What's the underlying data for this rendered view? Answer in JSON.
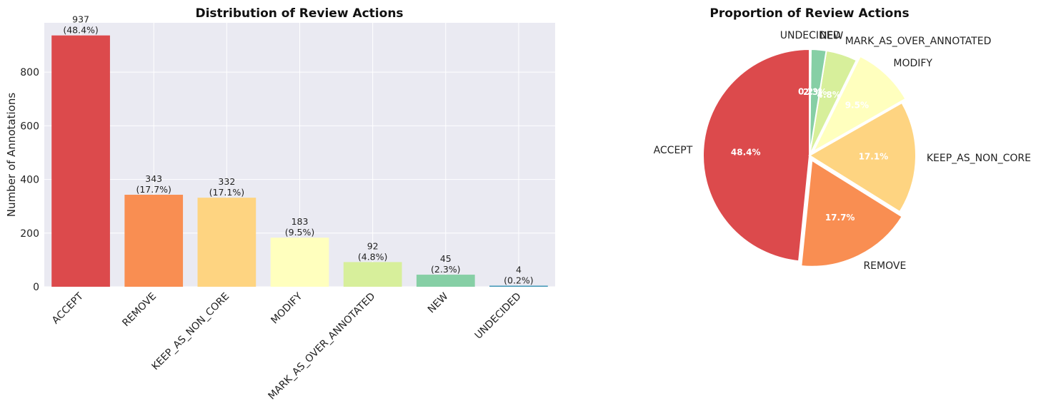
{
  "chart_data": [
    {
      "type": "bar",
      "title": "Distribution of Review Actions",
      "xlabel": "",
      "ylabel": "Number of Annotations",
      "categories": [
        "ACCEPT",
        "REMOVE",
        "KEEP_AS_NON_CORE",
        "MODIFY",
        "MARK_AS_OVER_ANNOTATED",
        "NEW",
        "UNDECIDED"
      ],
      "values": [
        937,
        343,
        332,
        183,
        92,
        45,
        4
      ],
      "data_labels": [
        "937\n(48.4%)",
        "343\n(17.7%)",
        "332\n(17.1%)",
        "183\n(9.5%)",
        "92\n(4.8%)",
        "45\n(2.3%)",
        "4\n(0.2%)"
      ],
      "colors": [
        "#dc4a4c",
        "#f98e52",
        "#fed481",
        "#ffffbe",
        "#d7ef9b",
        "#86cfa5",
        "#3e96b6"
      ],
      "yticks": [
        0,
        200,
        400,
        600,
        800
      ],
      "ylim": [
        0,
        984
      ],
      "grid": true
    },
    {
      "type": "pie",
      "title": "Proportion of Review Actions",
      "labels": [
        "ACCEPT",
        "REMOVE",
        "KEEP_AS_NON_CORE",
        "MODIFY",
        "MARK_AS_OVER_ANNOTATED",
        "NEW",
        "UNDECIDED"
      ],
      "values": [
        937,
        343,
        332,
        183,
        92,
        45,
        4
      ],
      "percent_labels": [
        "48.4%",
        "17.7%",
        "17.1%",
        "9.5%",
        "4.8%",
        "2.3%",
        "0.2%"
      ],
      "colors": [
        "#dc4a4c",
        "#f98e52",
        "#fed481",
        "#ffffbe",
        "#d7ef9b",
        "#86cfa5",
        "#3e96b6"
      ],
      "exploded": [
        "REMOVE",
        "MODIFY"
      ],
      "start": "top",
      "direction": "counter-clockwise"
    }
  ]
}
